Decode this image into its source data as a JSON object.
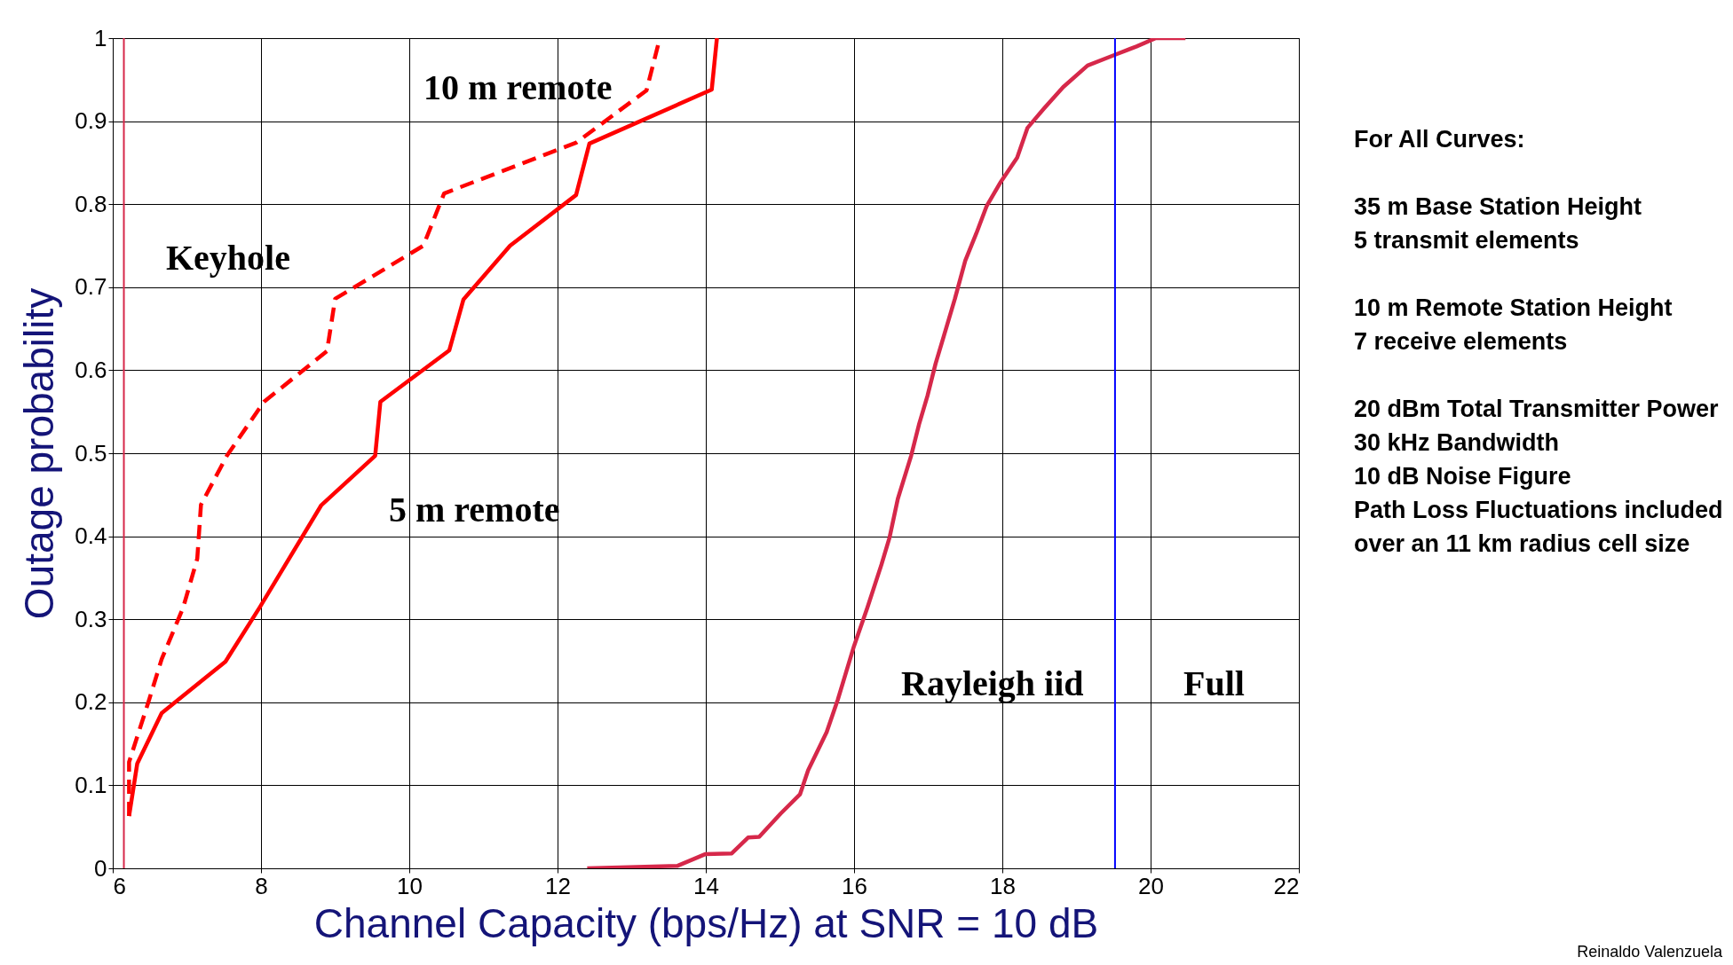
{
  "chart_data": {
    "type": "line",
    "xlabel": "Channel Capacity (bps/Hz) at SNR = 10 dB",
    "ylabel": "Outage probability",
    "xlim": [
      6,
      22
    ],
    "xticks": [
      6,
      8,
      10,
      12,
      14,
      16,
      18,
      20,
      22
    ],
    "ylim": [
      0,
      1
    ],
    "yticks": [
      0,
      0.1,
      0.2,
      0.3,
      0.4,
      0.5,
      0.6,
      0.7,
      0.8,
      0.9,
      1
    ],
    "grid": true,
    "series": [
      {
        "color": "#ff0000",
        "line_style": "solid",
        "x": [
          6.22,
          6.33,
          6.66,
          7.52,
          7.98,
          8.81,
          9.54,
          9.61,
          10.54,
          10.73,
          11.36,
          12.25,
          12.43,
          14.08,
          14.15
        ],
        "values": [
          0.063,
          0.126,
          0.187,
          0.249,
          0.314,
          0.437,
          0.497,
          0.562,
          0.624,
          0.685,
          0.75,
          0.811,
          0.873,
          0.938,
          1
        ]
      },
      {
        "color": "#ff0000",
        "line_style": "dashed",
        "x": [
          6.22,
          6.22,
          6.48,
          6.66,
          6.95,
          7.14,
          7.19,
          7.54,
          8.04,
          8.89,
          9.0,
          10.19,
          10.47,
          12.25,
          13.2,
          13.38
        ],
        "values": [
          0.063,
          0.128,
          0.2,
          0.252,
          0.314,
          0.373,
          0.438,
          0.497,
          0.562,
          0.623,
          0.686,
          0.75,
          0.813,
          0.874,
          0.937,
          1
        ]
      },
      {
        "color": "#d6284a",
        "line_style": "solid",
        "x": [
          12.4,
          13.62,
          13.99,
          14.35,
          14.57,
          14.72,
          15.01,
          15.27,
          15.38,
          15.63,
          15.78,
          16.0,
          16.18,
          16.37,
          16.48,
          16.59,
          16.77,
          16.88,
          16.99,
          17.1,
          17.21,
          17.36,
          17.5,
          17.65,
          17.79,
          17.98,
          18.2,
          18.34,
          18.56,
          18.82,
          19.15,
          19.52,
          19.81,
          20.07,
          20.47
        ],
        "values": [
          0,
          0.003,
          0.017,
          0.018,
          0.037,
          0.038,
          0.066,
          0.089,
          0.118,
          0.164,
          0.203,
          0.268,
          0.314,
          0.366,
          0.399,
          0.445,
          0.497,
          0.536,
          0.569,
          0.608,
          0.641,
          0.686,
          0.732,
          0.765,
          0.798,
          0.827,
          0.856,
          0.892,
          0.915,
          0.941,
          0.967,
          0.98,
          0.99,
          1,
          1
        ]
      }
    ],
    "ref_lines": [
      {
        "axis": "x",
        "value": 6.15,
        "color": "#d6284a"
      },
      {
        "axis": "x",
        "value": 19.52,
        "color": "#0000ff"
      }
    ],
    "annotations": [
      "10 m remote",
      "5 m remote",
      "Keyhole",
      "Rayleigh iid",
      "Full",
      "For All Curves:",
      "35 m Base Station Height",
      "5 transmit elements",
      "10 m Remote Station Height",
      "7 receive elements",
      "20 dBm Total Transmitter Power",
      "30 kHz Bandwidth",
      "10 dB Noise Figure",
      "Path Loss Fluctuations included",
      "over an 11 km radius cell size",
      "Reinaldo Valenzuela"
    ]
  }
}
